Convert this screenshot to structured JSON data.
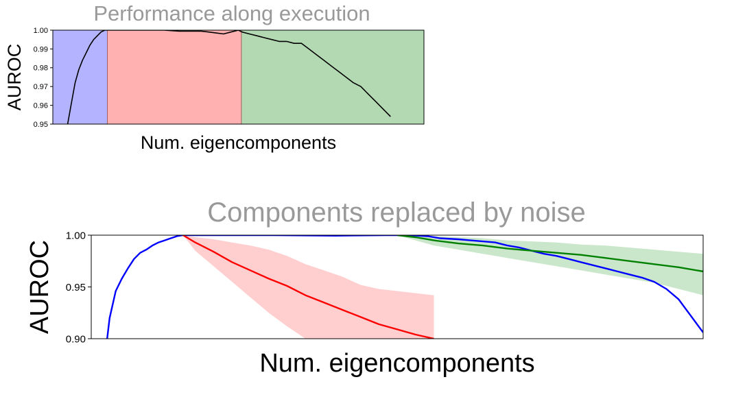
{
  "chart_data": [
    {
      "type": "line",
      "title": "Performance along execution",
      "xlabel": "Num. eigencomponents",
      "ylabel": "AUROC",
      "ylim": [
        0.95,
        1.0
      ],
      "yticks": [
        "0.95",
        "0.96",
        "0.97",
        "0.98",
        "0.99",
        "1.00"
      ],
      "x_range": [
        0,
        100
      ],
      "grid": false,
      "regions": [
        {
          "from": 0,
          "to": 14.7,
          "color": "#b3b3ff"
        },
        {
          "from": 14.7,
          "to": 50.8,
          "color": "#ffb0b0"
        },
        {
          "from": 50.8,
          "to": 100,
          "color": "#b3d9b3"
        }
      ],
      "series": [
        {
          "color": "#000000",
          "x": [
            4,
            5,
            6,
            7,
            8,
            9,
            10,
            11,
            12,
            13,
            14,
            15,
            18,
            22,
            26,
            30,
            34,
            38,
            40,
            42,
            44,
            46,
            48,
            50,
            51,
            53,
            55,
            57,
            59,
            61,
            63,
            65,
            67,
            69,
            71,
            73,
            75,
            77,
            79,
            81,
            83,
            85,
            87,
            89,
            91
          ],
          "y": [
            0.95,
            0.961,
            0.972,
            0.979,
            0.984,
            0.988,
            0.992,
            0.995,
            0.997,
            0.999,
            1.0,
            1.0,
            1.0,
            1.0,
            1.0,
            1.0,
            0.9995,
            0.9995,
            0.9995,
            0.999,
            0.9985,
            0.998,
            0.999,
            1.0,
            0.999,
            0.998,
            0.997,
            0.996,
            0.995,
            0.994,
            0.994,
            0.993,
            0.993,
            0.99,
            0.987,
            0.984,
            0.981,
            0.978,
            0.975,
            0.972,
            0.97,
            0.966,
            0.962,
            0.958,
            0.954
          ]
        }
      ]
    },
    {
      "type": "line",
      "title": "Components replaced by noise",
      "xlabel": "Num. eigencomponents",
      "ylabel": "AUROC",
      "ylim": [
        0.9,
        1.0
      ],
      "yticks": [
        "0.90",
        "0.95",
        "1.00"
      ],
      "x_range": [
        0,
        100
      ],
      "grid": false,
      "series": [
        {
          "color": "#0000ff",
          "x": [
            2.6,
            3,
            4,
            5,
            6,
            7,
            8,
            9,
            10,
            11,
            12,
            13,
            14,
            15,
            16,
            18,
            20,
            30,
            40,
            48,
            50,
            52,
            55,
            57,
            60,
            62,
            64,
            66,
            68,
            70,
            72,
            74,
            76,
            78,
            80,
            82,
            84,
            86,
            88,
            90,
            92,
            94,
            96,
            98,
            100
          ],
          "y": [
            0.9,
            0.92,
            0.946,
            0.958,
            0.968,
            0.977,
            0.983,
            0.986,
            0.99,
            0.993,
            0.995,
            0.997,
            0.999,
            1.0,
            1.0,
            1.0,
            1.0,
            1.0,
            0.9995,
            1.0,
            1.0,
            1.0,
            0.999,
            0.997,
            0.996,
            0.995,
            0.994,
            0.993,
            0.99,
            0.988,
            0.985,
            0.982,
            0.98,
            0.977,
            0.974,
            0.971,
            0.968,
            0.965,
            0.962,
            0.959,
            0.955,
            0.948,
            0.938,
            0.922,
            0.906
          ]
        },
        {
          "color": "#ff0000",
          "band_color": "#ffcccc",
          "x": [
            15,
            17,
            20,
            23,
            26,
            29,
            32,
            35,
            38,
            41,
            44,
            47,
            50,
            53,
            56
          ],
          "y": [
            1.0,
            0.993,
            0.984,
            0.974,
            0.966,
            0.958,
            0.951,
            0.942,
            0.935,
            0.928,
            0.921,
            0.914,
            0.909,
            0.904,
            0.9
          ],
          "upper": [
            1.0,
            0.998,
            0.996,
            0.993,
            0.99,
            0.986,
            0.98,
            0.972,
            0.966,
            0.96,
            0.952,
            0.948,
            0.946,
            0.944,
            0.942
          ],
          "lower": [
            1.0,
            0.985,
            0.97,
            0.955,
            0.94,
            0.925,
            0.912,
            0.9,
            0.9,
            0.9,
            0.9,
            0.9,
            0.9,
            0.9,
            0.9
          ]
        },
        {
          "color": "#008000",
          "band_color": "#c8e6c8",
          "x": [
            50,
            53,
            56,
            60,
            64,
            68,
            72,
            76,
            80,
            84,
            88,
            92,
            96,
            100
          ],
          "y": [
            1.0,
            0.998,
            0.995,
            0.992,
            0.99,
            0.987,
            0.985,
            0.983,
            0.981,
            0.978,
            0.975,
            0.972,
            0.969,
            0.965
          ],
          "upper": [
            1.0,
            1.0,
            0.999,
            0.998,
            0.997,
            0.995,
            0.994,
            0.993,
            0.991,
            0.99,
            0.988,
            0.986,
            0.984,
            0.982
          ],
          "lower": [
            1.0,
            0.995,
            0.99,
            0.986,
            0.982,
            0.978,
            0.974,
            0.97,
            0.966,
            0.962,
            0.958,
            0.954,
            0.948,
            0.942
          ]
        }
      ]
    }
  ]
}
